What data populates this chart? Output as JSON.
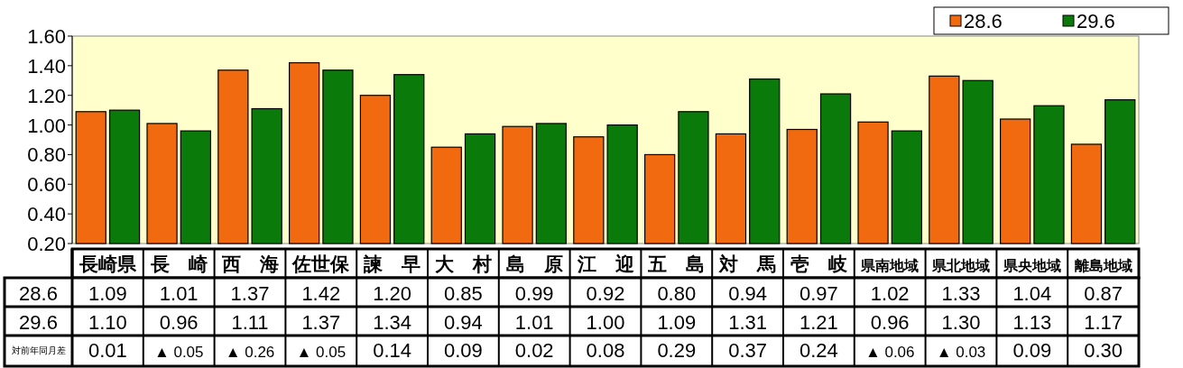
{
  "chart_data": {
    "type": "bar",
    "categories": [
      "長崎県",
      "長　崎",
      "西　海",
      "佐世保",
      "諫　早",
      "大　村",
      "島　原",
      "江　迎",
      "五　島",
      "対　馬",
      "壱　岐",
      "県南地域",
      "県北地域",
      "県央地域",
      "離島地域"
    ],
    "series": [
      {
        "name": "28.6",
        "color": "#f26a10",
        "values": [
          1.09,
          1.01,
          1.37,
          1.42,
          1.2,
          0.85,
          0.99,
          0.92,
          0.8,
          0.94,
          0.97,
          1.02,
          1.33,
          1.04,
          0.87
        ],
        "value_labels": [
          "1.09",
          "1.01",
          "1.37",
          "1.42",
          "1.20",
          "0.85",
          "0.99",
          "0.92",
          "0.80",
          "0.94",
          "0.97",
          "1.02",
          "1.33",
          "1.04",
          "0.87"
        ]
      },
      {
        "name": "29.6",
        "color": "#0a7a0a",
        "values": [
          1.1,
          0.96,
          1.11,
          1.37,
          1.34,
          0.94,
          1.01,
          1.0,
          1.09,
          1.31,
          1.21,
          0.96,
          1.3,
          1.13,
          1.17
        ],
        "value_labels": [
          "1.10",
          "0.96",
          "1.11",
          "1.37",
          "1.34",
          "0.94",
          "1.01",
          "1.00",
          "1.09",
          "1.31",
          "1.21",
          "0.96",
          "1.30",
          "1.13",
          "1.17"
        ]
      }
    ],
    "annotations": [
      "対前年同月差",
      "0.01",
      "▲ 0.05",
      "▲ 0.26",
      "▲ 0.05",
      "0.14",
      "0.09",
      "0.02",
      "0.08",
      "0.29",
      "0.37",
      "0.24",
      "▲ 0.06",
      "▲ 0.03",
      "0.09",
      "0.30"
    ],
    "ylim": [
      0.2,
      1.6
    ],
    "yticks": [
      {
        "value": 0.2,
        "label": "0.20"
      },
      {
        "value": 0.4,
        "label": "0.40"
      },
      {
        "value": 0.6,
        "label": "0.60"
      },
      {
        "value": 0.8,
        "label": "0.80"
      },
      {
        "value": 1.0,
        "label": "1.00"
      },
      {
        "value": 1.2,
        "label": "1.20"
      },
      {
        "value": 1.4,
        "label": "1.40"
      },
      {
        "value": 1.6,
        "label": "1.60"
      }
    ],
    "legend": "top right"
  }
}
